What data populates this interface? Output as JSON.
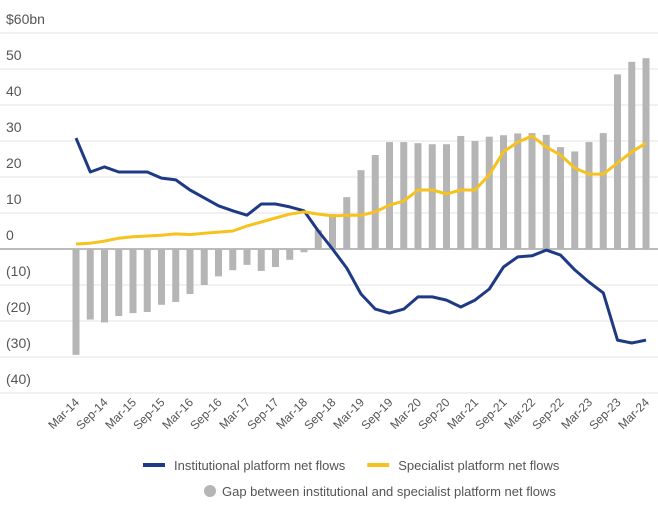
{
  "chart_data": {
    "type": "bar_line",
    "categories": [
      "Mar-14",
      null,
      "Sep-14",
      null,
      "Mar-15",
      null,
      "Sep-15",
      null,
      "Mar-16",
      null,
      "Sep-16",
      null,
      "Mar-17",
      null,
      "Sep-17",
      null,
      "Mar-18",
      null,
      "Sep-18",
      null,
      "Mar-19",
      null,
      "Sep-19",
      null,
      "Mar-20",
      null,
      "Sep-20",
      null,
      "Mar-21",
      null,
      "Sep-21",
      null,
      "Mar-22",
      null,
      "Sep-22",
      null,
      "Mar-23",
      null,
      "Sep-23",
      null,
      "Mar-24"
    ],
    "series": [
      {
        "name": "Gap between institutional and specialist platform net flows",
        "kind": "bar",
        "color": "#b5b5b5",
        "values": [
          -29.4,
          -19.6,
          -20.4,
          -18.6,
          -17.8,
          -17.5,
          -15.5,
          -14.7,
          -12.5,
          -10,
          -7.6,
          -5.9,
          -4.4,
          -6.1,
          -5,
          -3,
          -0.9,
          5.3,
          9.7,
          14.4,
          21.9,
          26.1,
          29.7,
          29.7,
          29.4,
          29.1,
          29.1,
          31.4,
          30,
          31.2,
          31.6,
          32.1,
          32.2,
          31.7,
          28.3,
          27.1,
          29.7,
          32.2,
          48.5,
          52,
          53
        ]
      },
      {
        "name": "Institutional platform net flows",
        "kind": "line",
        "color": "#1f3a85",
        "values": [
          30.8,
          21.4,
          22.8,
          21.4,
          21.4,
          21.4,
          19.7,
          19.2,
          16.4,
          14.2,
          12,
          10.6,
          9.4,
          12.5,
          12.5,
          11.7,
          10.6,
          5,
          0,
          -5.3,
          -12.5,
          -16.7,
          -17.8,
          -16.7,
          -13.3,
          -13.3,
          -14.2,
          -16.1,
          -14.2,
          -11.1,
          -5,
          -2.2,
          -1.9,
          -0.3,
          -1.7,
          -5.8,
          -9.2,
          -12.2,
          -25.3,
          -26.1,
          -25.3
        ]
      },
      {
        "name": "Specialist platform net flows",
        "kind": "line",
        "color": "#f7c21d",
        "values": [
          1.4,
          1.6,
          2.2,
          3,
          3.4,
          3.6,
          3.8,
          4.2,
          4,
          4.4,
          4.7,
          5,
          6.4,
          7.5,
          8.6,
          9.7,
          10.3,
          9.7,
          9.2,
          9.4,
          9.4,
          10.3,
          12.2,
          13.3,
          16.4,
          16.4,
          15.3,
          16.4,
          16.4,
          20.6,
          27,
          29.7,
          31.4,
          28.3,
          26.1,
          22.5,
          20.8,
          20.8,
          23.9,
          27,
          29.4
        ]
      }
    ],
    "ylim": [
      -40,
      60
    ],
    "yticks": [
      {
        "value": -40,
        "label": "(40)"
      },
      {
        "value": -30,
        "label": "(30)"
      },
      {
        "value": -20,
        "label": "(20)"
      },
      {
        "value": -10,
        "label": "(10)"
      },
      0,
      10,
      20,
      30,
      40,
      50,
      {
        "value": 60,
        "label": "$60bn"
      }
    ],
    "grid": true,
    "legend": "bottom-right"
  }
}
